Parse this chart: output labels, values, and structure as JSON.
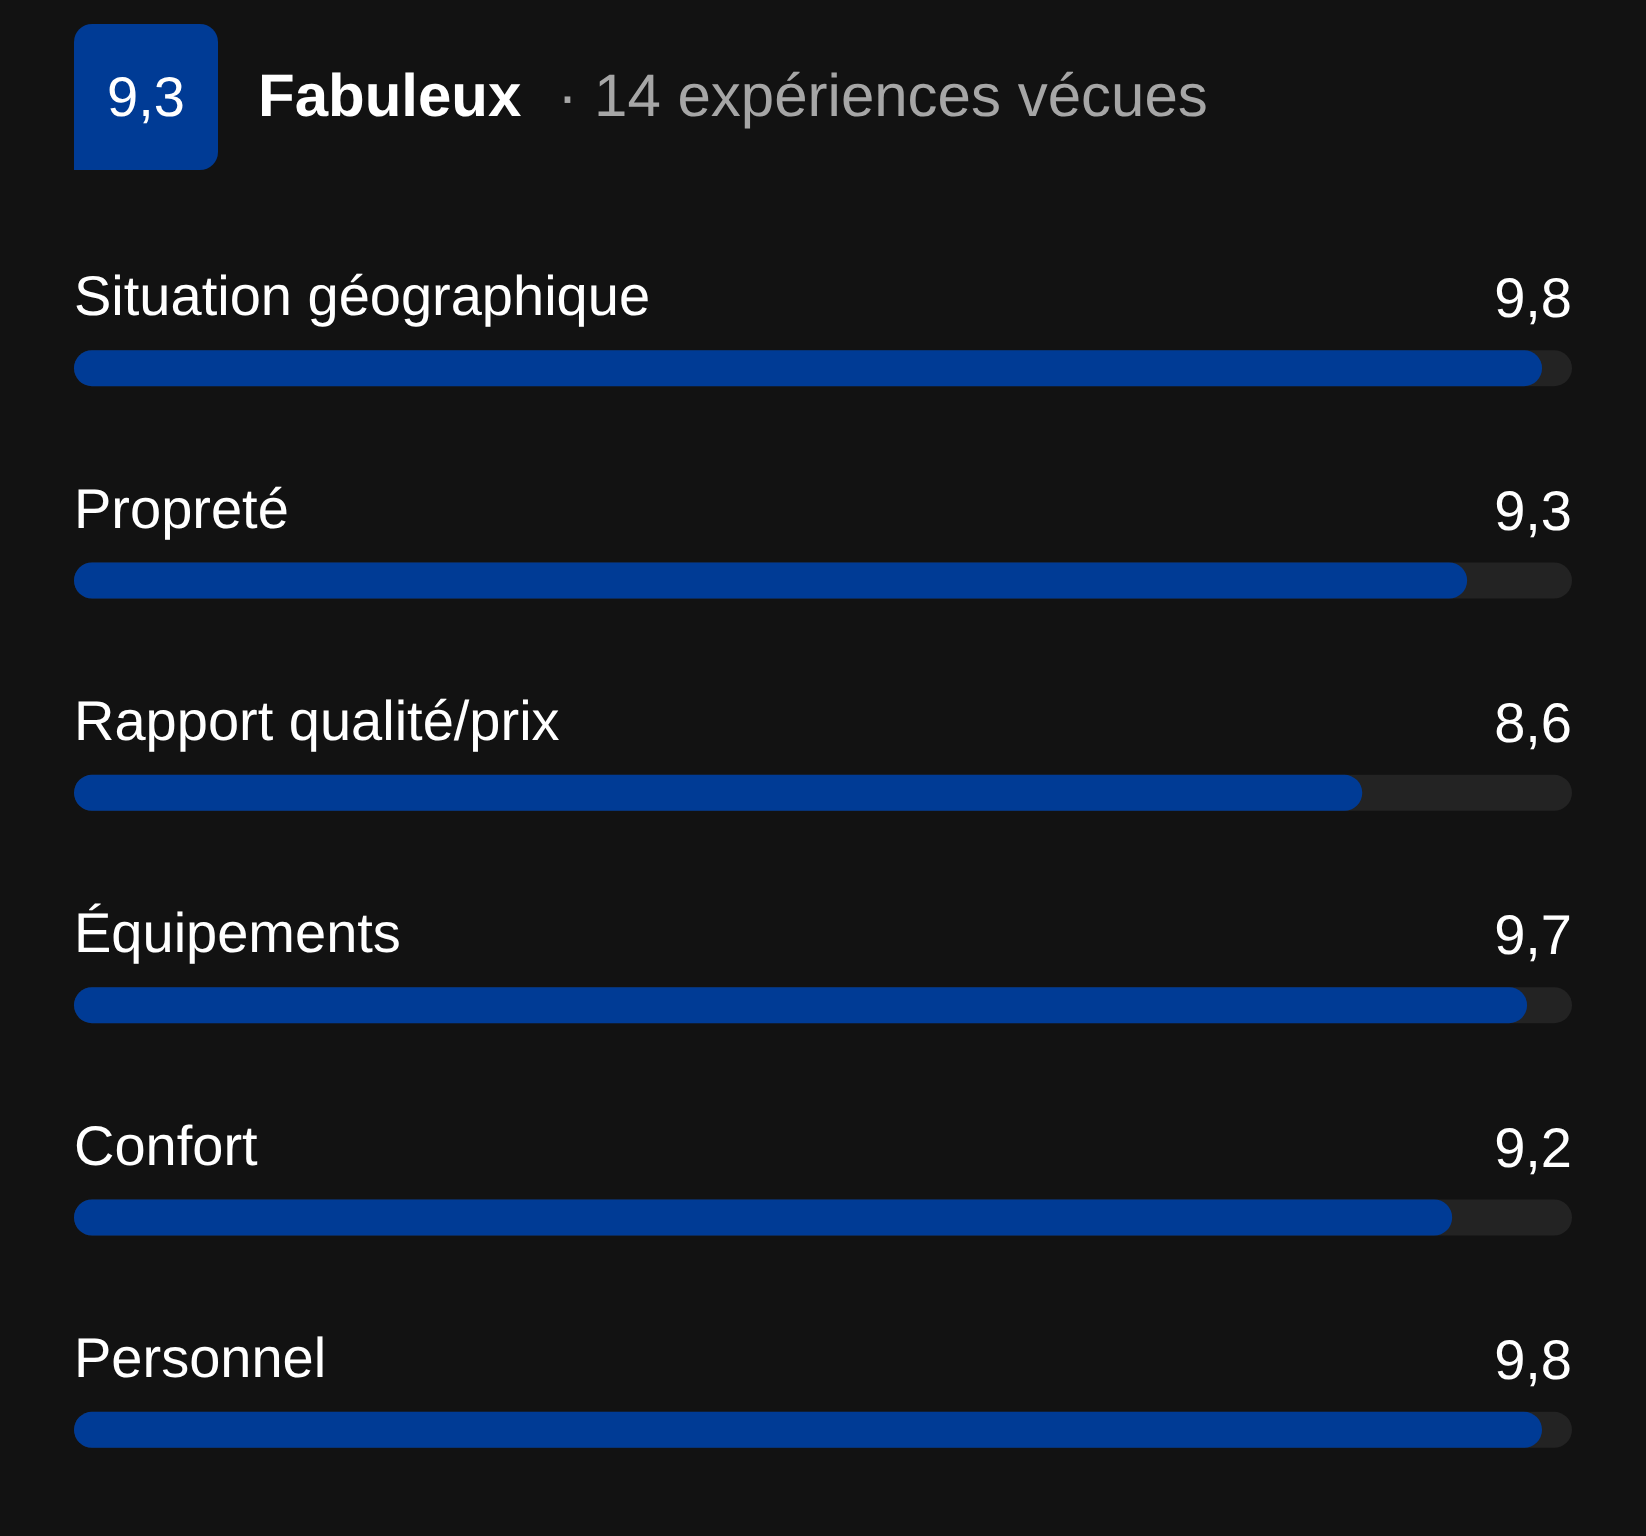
{
  "chart_data": {
    "type": "bar",
    "orientation": "horizontal",
    "title": "Fabuleux",
    "subtitle": "· 14 expériences vécues",
    "annotations": [
      "9,3"
    ],
    "categories": [
      "Situation géographique",
      "Propreté",
      "Rapport qualité/prix",
      "Équipements",
      "Confort",
      "Personnel"
    ],
    "values": [
      9.8,
      9.3,
      8.6,
      9.7,
      9.2,
      9.8
    ],
    "value_labels": [
      "9,8",
      "9,3",
      "8,6",
      "9,7",
      "9,2",
      "9,8"
    ],
    "color": "#003b95",
    "xlim": [
      0,
      10
    ],
    "tick_labels": "y",
    "grid": false
  }
}
